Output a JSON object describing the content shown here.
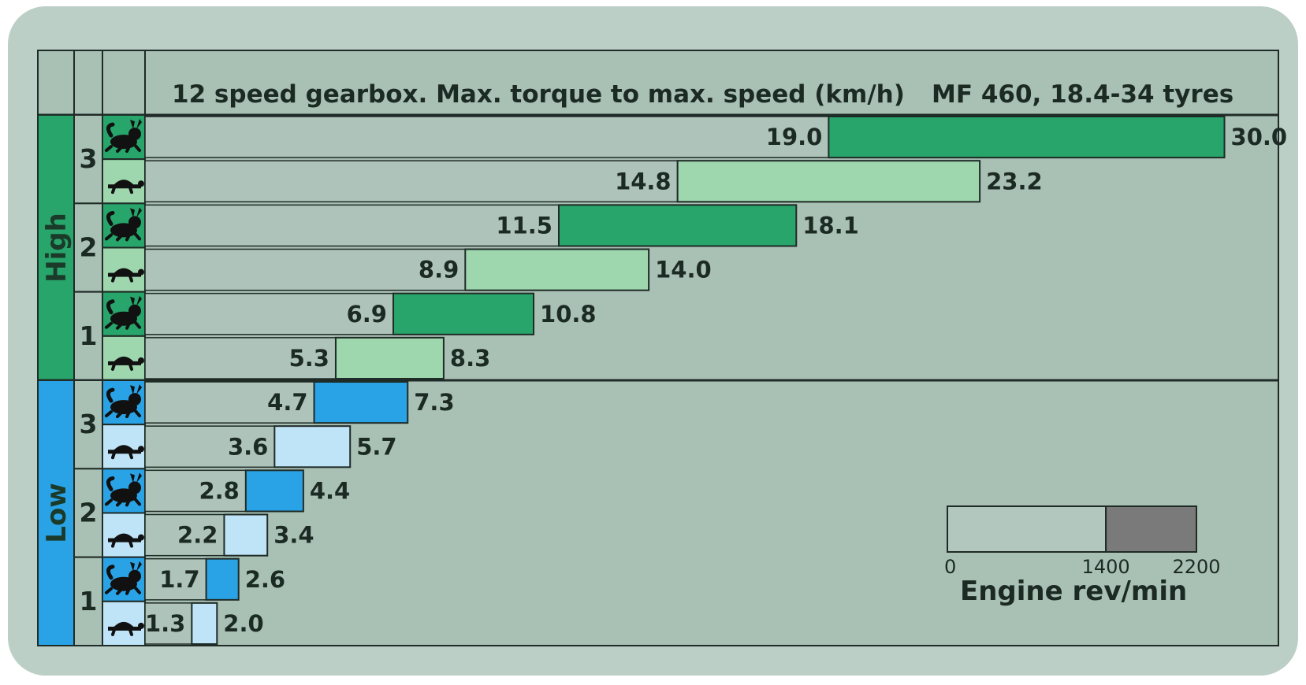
{
  "chart_data": {
    "type": "bar",
    "title": "12 speed gearbox. Max. torque to max. speed (km/h)",
    "subtitle": "MF 460, 18.4-34 tyres",
    "xlim": [
      0,
      31.5
    ],
    "groups": [
      {
        "range": "High",
        "color_fast": "#27a56b",
        "color_slow": "#9ed6ae",
        "gears": [
          {
            "gear": "3",
            "rows": [
              {
                "speed_icon": "hare-icon",
                "start": 19.0,
                "end": 30.0,
                "start_label": "19.0",
                "end_label": "30.0"
              },
              {
                "speed_icon": "tortoise-icon",
                "start": 14.8,
                "end": 23.2,
                "start_label": "14.8",
                "end_label": "23.2"
              }
            ]
          },
          {
            "gear": "2",
            "rows": [
              {
                "speed_icon": "hare-icon",
                "start": 11.5,
                "end": 18.1,
                "start_label": "11.5",
                "end_label": "18.1"
              },
              {
                "speed_icon": "tortoise-icon",
                "start": 8.9,
                "end": 14.0,
                "start_label": "8.9",
                "end_label": "14.0"
              }
            ]
          },
          {
            "gear": "1",
            "rows": [
              {
                "speed_icon": "hare-icon",
                "start": 6.9,
                "end": 10.8,
                "start_label": "6.9",
                "end_label": "10.8"
              },
              {
                "speed_icon": "tortoise-icon",
                "start": 5.3,
                "end": 8.3,
                "start_label": "5.3",
                "end_label": "8.3"
              }
            ]
          }
        ]
      },
      {
        "range": "Low",
        "color_fast": "#2aa3e6",
        "color_slow": "#bfe3f7",
        "gears": [
          {
            "gear": "3",
            "rows": [
              {
                "speed_icon": "hare-icon",
                "start": 4.7,
                "end": 7.3,
                "start_label": "4.7",
                "end_label": "7.3"
              },
              {
                "speed_icon": "tortoise-icon",
                "start": 3.6,
                "end": 5.7,
                "start_label": "3.6",
                "end_label": "5.7"
              }
            ]
          },
          {
            "gear": "2",
            "rows": [
              {
                "speed_icon": "hare-icon",
                "start": 2.8,
                "end": 4.4,
                "start_label": "2.8",
                "end_label": "4.4"
              },
              {
                "speed_icon": "tortoise-icon",
                "start": 2.2,
                "end": 3.4,
                "start_label": "2.2",
                "end_label": "3.4"
              }
            ]
          },
          {
            "gear": "1",
            "rows": [
              {
                "speed_icon": "hare-icon",
                "start": 1.7,
                "end": 2.6,
                "start_label": "1.7",
                "end_label": "2.6"
              },
              {
                "speed_icon": "tortoise-icon",
                "start": 1.3,
                "end": 2.0,
                "start_label": "1.3",
                "end_label": "2.0"
              }
            ]
          }
        ]
      }
    ],
    "legend": {
      "title": "Engine rev/min",
      "ticks": [
        "0",
        "1400",
        "2200"
      ],
      "segments": [
        {
          "from": 0,
          "to": 1400,
          "color": "#b2c7bd"
        },
        {
          "from": 1400,
          "to": 2200,
          "color": "#7a7a7a"
        }
      ]
    },
    "colors": {
      "background": "#a9c0b5",
      "frame": "#bccfc6",
      "row_empty": "#aec3b9",
      "header": "#a9c0b5",
      "lines": "#1f2b26"
    }
  }
}
